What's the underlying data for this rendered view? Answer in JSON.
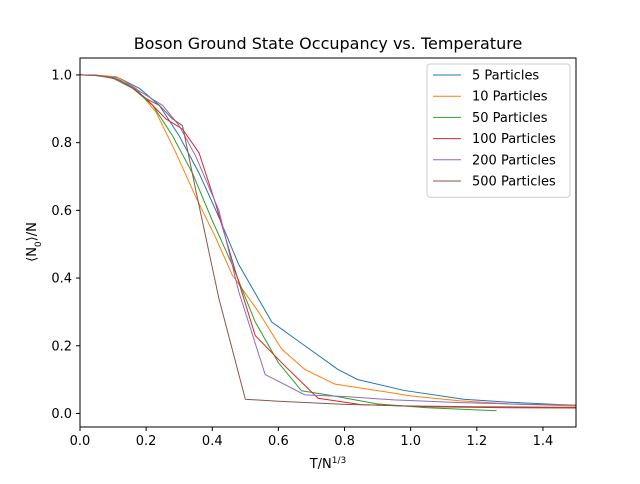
{
  "chart_data": {
    "type": "line",
    "title": "Boson Ground State Occupancy vs. Temperature",
    "xlabel": "T/N^{1/3}",
    "ylabel": "⟨N_0⟩/N",
    "xlim": [
      0,
      1.5
    ],
    "ylim": [
      -0.04,
      1.05
    ],
    "xticks": [
      0.0,
      0.2,
      0.4,
      0.6,
      0.8,
      1.0,
      1.2,
      1.4
    ],
    "xtick_labels": [
      "0.0",
      "0.2",
      "0.4",
      "0.6",
      "0.8",
      "1.0",
      "1.2",
      "1.4"
    ],
    "yticks": [
      0.0,
      0.2,
      0.4,
      0.6,
      0.8,
      1.0
    ],
    "ytick_labels": [
      "0.0",
      "0.2",
      "0.4",
      "0.6",
      "0.8",
      "1.0"
    ],
    "grid": false,
    "legend_position": "top-right",
    "series": [
      {
        "name": "5 Particles",
        "color": "#1f77b4",
        "x": [
          0,
          0.06,
          0.12,
          0.18,
          0.24,
          0.3,
          0.36,
          0.42,
          0.48,
          0.58,
          0.68,
          0.78,
          0.84,
          0.98,
          1.16,
          1.3,
          1.5
        ],
        "y": [
          1.0,
          0.998,
          0.99,
          0.96,
          0.91,
          0.82,
          0.71,
          0.58,
          0.44,
          0.27,
          0.2,
          0.13,
          0.1,
          0.068,
          0.042,
          0.033,
          0.024
        ]
      },
      {
        "name": "10 Particles",
        "color": "#ff7f0e",
        "x": [
          0,
          0.05,
          0.11,
          0.17,
          0.23,
          0.29,
          0.35,
          0.41,
          0.46,
          0.54,
          0.61,
          0.68,
          0.77,
          0.87,
          1.0,
          1.15,
          1.3,
          1.5
        ],
        "y": [
          1.0,
          0.999,
          0.995,
          0.96,
          0.89,
          0.77,
          0.64,
          0.52,
          0.41,
          0.3,
          0.19,
          0.13,
          0.087,
          0.072,
          0.052,
          0.037,
          0.028,
          0.022
        ]
      },
      {
        "name": "50 Particles",
        "color": "#2ca02c",
        "x": [
          0,
          0.05,
          0.1,
          0.16,
          0.22,
          0.28,
          0.34,
          0.4,
          0.46,
          0.53,
          0.6,
          0.67,
          0.76,
          0.9,
          1.05,
          1.26
        ],
        "y": [
          1.0,
          0.999,
          0.99,
          0.96,
          0.91,
          0.82,
          0.71,
          0.57,
          0.44,
          0.27,
          0.15,
          0.067,
          0.053,
          0.028,
          0.017,
          0.008
        ]
      },
      {
        "name": "100 Particles",
        "color": "#d62728",
        "x": [
          0,
          0.05,
          0.1,
          0.15,
          0.2,
          0.26,
          0.31,
          0.36,
          0.41,
          0.47,
          0.53,
          0.62,
          0.72,
          0.85,
          1.05,
          1.3,
          1.5
        ],
        "y": [
          1.0,
          0.999,
          0.99,
          0.97,
          0.93,
          0.87,
          0.84,
          0.77,
          0.62,
          0.42,
          0.23,
          0.14,
          0.045,
          0.026,
          0.02,
          0.017,
          0.016
        ]
      },
      {
        "name": "200 Particles",
        "color": "#9467bd",
        "x": [
          0,
          0.05,
          0.1,
          0.15,
          0.2,
          0.25,
          0.3,
          0.35,
          0.42,
          0.48,
          0.56,
          0.68,
          0.8,
          0.95,
          1.15,
          1.35,
          1.5
        ],
        "y": [
          1.0,
          0.998,
          0.99,
          0.97,
          0.94,
          0.91,
          0.85,
          0.76,
          0.6,
          0.36,
          0.115,
          0.055,
          0.05,
          0.04,
          0.032,
          0.027,
          0.025
        ]
      },
      {
        "name": "500 Particles",
        "color": "#8c564b",
        "x": [
          0,
          0.04,
          0.08,
          0.12,
          0.16,
          0.2,
          0.24,
          0.28,
          0.31,
          0.35,
          0.42,
          0.5,
          0.6,
          0.8,
          1.0,
          1.2,
          1.5
        ],
        "y": [
          1.0,
          0.999,
          0.995,
          0.985,
          0.96,
          0.93,
          0.91,
          0.87,
          0.85,
          0.66,
          0.34,
          0.042,
          0.036,
          0.027,
          0.022,
          0.02,
          0.018
        ]
      }
    ]
  }
}
